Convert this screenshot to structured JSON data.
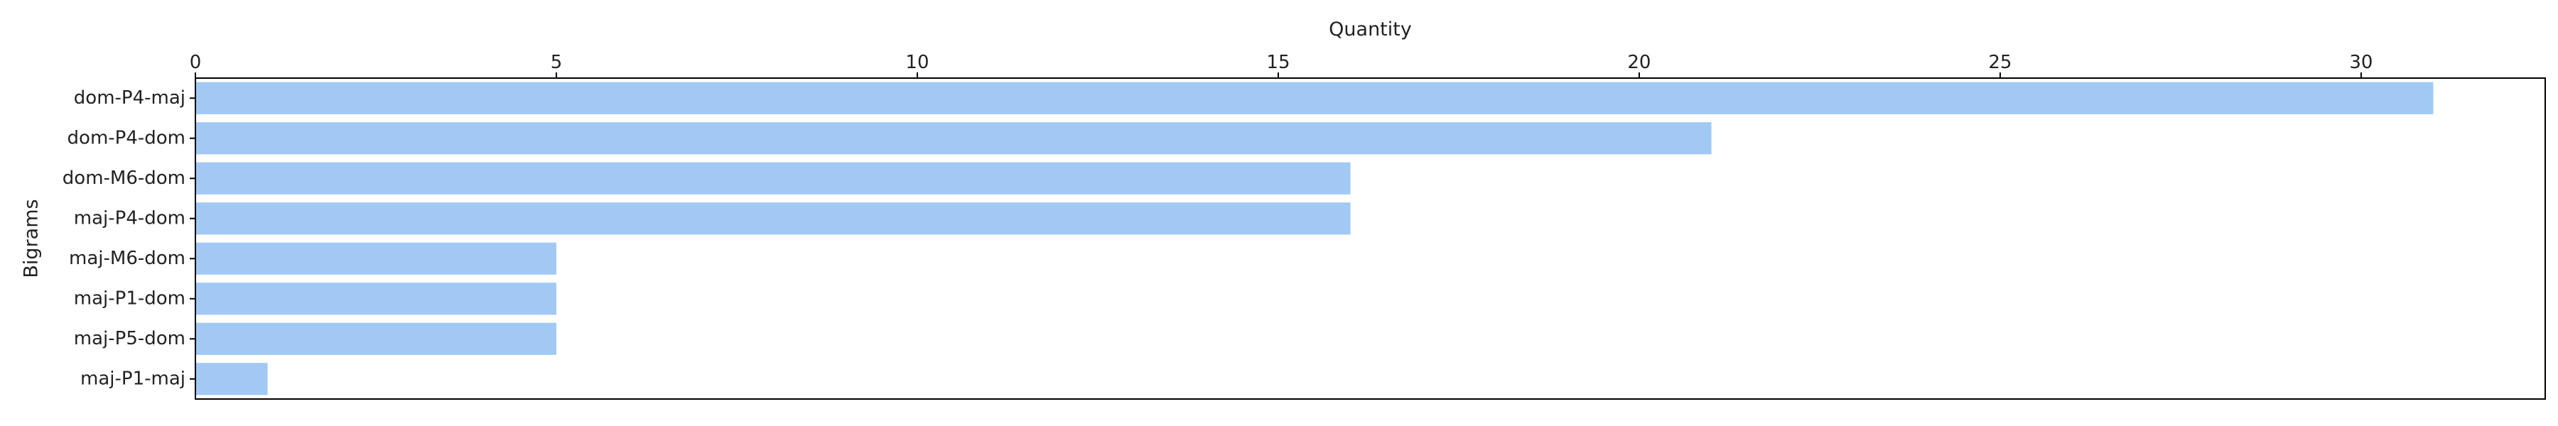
{
  "chart_data": {
    "type": "bar",
    "orientation": "horizontal",
    "categories": [
      "dom-P4-maj",
      "dom-P4-dom",
      "dom-M6-dom",
      "maj-P4-dom",
      "maj-M6-dom",
      "maj-P1-dom",
      "maj-P5-dom",
      "maj-P1-maj"
    ],
    "values": [
      31,
      21,
      16,
      16,
      5,
      5,
      5,
      1
    ],
    "xlabel": "Quantity",
    "ylabel": "Bigrams",
    "xlim": [
      0,
      32.55
    ],
    "xticks": [
      0,
      5,
      10,
      15,
      20,
      25,
      30
    ],
    "x_axis_position": "top",
    "grid": false,
    "bar_color": "#a1c9f4"
  }
}
